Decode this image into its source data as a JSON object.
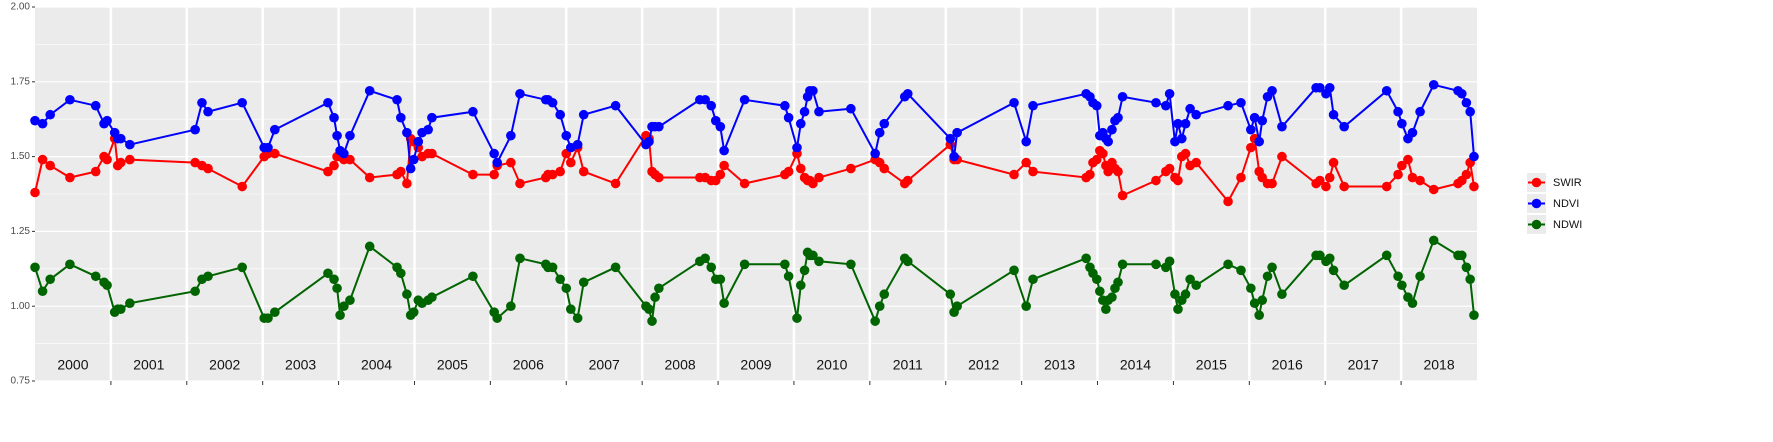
{
  "chart_data": {
    "type": "line",
    "xlim": [
      2000,
      2019
    ],
    "ylim": [
      0.75,
      2.0
    ],
    "yticks": [
      {
        "value": 0.75,
        "label": "0.75"
      },
      {
        "value": 1.0,
        "label": "1.00"
      },
      {
        "value": 1.25,
        "label": "1.25"
      },
      {
        "value": 1.5,
        "label": "1.50"
      },
      {
        "value": 1.75,
        "label": "1.75"
      },
      {
        "value": 2.0,
        "label": "2.00"
      }
    ],
    "year_boundaries": [
      2001,
      2002,
      2003,
      2004,
      2005,
      2006,
      2007,
      2008,
      2009,
      2010,
      2011,
      2012,
      2013,
      2014,
      2015,
      2016,
      2017,
      2018
    ],
    "year_labels": [
      "2000",
      "2001",
      "2002",
      "2003",
      "2004",
      "2005",
      "2006",
      "2007",
      "2008",
      "2009",
      "2010",
      "2011",
      "2012",
      "2013",
      "2014",
      "2015",
      "2016",
      "2017",
      "2018"
    ],
    "grid": true,
    "legend": "right",
    "x": [
      2000.0,
      2000.1,
      2000.2,
      2000.46,
      2000.8,
      2000.91,
      2000.95,
      2001.05,
      2001.09,
      2001.13,
      2001.25,
      2002.11,
      2002.2,
      2002.28,
      2002.73,
      2003.02,
      2003.07,
      2003.16,
      2003.86,
      2003.94,
      2003.98,
      2004.02,
      2004.07,
      2004.15,
      2004.41,
      2004.77,
      2004.82,
      2004.9,
      2004.95,
      2004.99,
      2005.05,
      2005.1,
      2005.18,
      2005.23,
      2005.77,
      2006.05,
      2006.09,
      2006.27,
      2006.39,
      2006.73,
      2006.76,
      2006.82,
      2006.92,
      2007.0,
      2007.06,
      2007.15,
      2007.23,
      2007.65,
      2008.05,
      2008.09,
      2008.13,
      2008.17,
      2008.22,
      2008.76,
      2008.83,
      2008.91,
      2008.97,
      2009.03,
      2009.08,
      2009.35,
      2009.88,
      2009.93,
      2010.04,
      2010.09,
      2010.14,
      2010.18,
      2010.21,
      2010.25,
      2010.33,
      2010.75,
      2011.07,
      2011.13,
      2011.19,
      2011.46,
      2011.5,
      2012.06,
      2012.11,
      2012.15,
      2012.9,
      2013.06,
      2013.15,
      2013.85,
      2013.9,
      2013.94,
      2013.99,
      2014.03,
      2014.07,
      2014.11,
      2014.14,
      2014.19,
      2014.23,
      2014.27,
      2014.33,
      2014.77,
      2014.9,
      2014.95,
      2015.02,
      2015.06,
      2015.11,
      2015.16,
      2015.22,
      2015.3,
      2015.72,
      2015.89,
      2016.02,
      2016.07,
      2016.13,
      2016.17,
      2016.24,
      2016.3,
      2016.43,
      2016.88,
      2016.93,
      2017.01,
      2017.06,
      2017.11,
      2017.25,
      2017.81,
      2017.96,
      2018.01,
      2018.09,
      2018.15,
      2018.25,
      2018.43,
      2018.75,
      2018.8,
      2018.86,
      2018.91,
      2018.96
    ],
    "series": [
      {
        "name": "SWIR",
        "color": "#ff0000",
        "values": [
          1.38,
          1.49,
          1.47,
          1.43,
          1.45,
          1.5,
          1.49,
          1.56,
          1.47,
          1.48,
          1.49,
          1.48,
          1.47,
          1.46,
          1.4,
          1.5,
          1.51,
          1.51,
          1.45,
          1.47,
          1.5,
          1.5,
          1.49,
          1.49,
          1.43,
          1.44,
          1.45,
          1.41,
          1.56,
          1.55,
          1.53,
          1.5,
          1.51,
          1.51,
          1.44,
          1.44,
          1.47,
          1.48,
          1.41,
          1.43,
          1.44,
          1.44,
          1.45,
          1.51,
          1.48,
          1.53,
          1.45,
          1.41,
          1.57,
          1.56,
          1.45,
          1.44,
          1.43,
          1.43,
          1.43,
          1.42,
          1.42,
          1.44,
          1.47,
          1.41,
          1.44,
          1.45,
          1.51,
          1.46,
          1.43,
          1.42,
          1.42,
          1.41,
          1.43,
          1.46,
          1.49,
          1.48,
          1.46,
          1.41,
          1.42,
          1.54,
          1.49,
          1.49,
          1.44,
          1.48,
          1.45,
          1.43,
          1.44,
          1.48,
          1.49,
          1.52,
          1.51,
          1.47,
          1.45,
          1.48,
          1.46,
          1.45,
          1.37,
          1.42,
          1.45,
          1.46,
          1.43,
          1.42,
          1.5,
          1.51,
          1.47,
          1.48,
          1.35,
          1.43,
          1.53,
          1.56,
          1.45,
          1.43,
          1.41,
          1.41,
          1.5,
          1.41,
          1.42,
          1.4,
          1.43,
          1.48,
          1.4,
          1.4,
          1.44,
          1.47,
          1.49,
          1.43,
          1.42,
          1.39,
          1.41,
          1.42,
          1.44,
          1.48,
          1.4
        ]
      },
      {
        "name": "NDVI",
        "color": "#0000ff",
        "values": [
          1.62,
          1.61,
          1.64,
          1.69,
          1.67,
          1.61,
          1.62,
          1.58,
          1.56,
          1.56,
          1.54,
          1.59,
          1.68,
          1.65,
          1.68,
          1.53,
          1.53,
          1.59,
          1.68,
          1.63,
          1.57,
          1.52,
          1.51,
          1.57,
          1.72,
          1.69,
          1.63,
          1.58,
          1.46,
          1.49,
          1.55,
          1.58,
          1.59,
          1.63,
          1.65,
          1.51,
          1.48,
          1.57,
          1.71,
          1.69,
          1.69,
          1.68,
          1.64,
          1.57,
          1.53,
          1.54,
          1.64,
          1.67,
          1.54,
          1.55,
          1.6,
          1.6,
          1.6,
          1.69,
          1.69,
          1.67,
          1.62,
          1.6,
          1.52,
          1.69,
          1.67,
          1.63,
          1.53,
          1.61,
          1.65,
          1.7,
          1.72,
          1.72,
          1.65,
          1.66,
          1.51,
          1.58,
          1.61,
          1.7,
          1.71,
          1.56,
          1.5,
          1.58,
          1.68,
          1.55,
          1.67,
          1.71,
          1.7,
          1.68,
          1.67,
          1.57,
          1.58,
          1.56,
          1.55,
          1.59,
          1.62,
          1.63,
          1.7,
          1.68,
          1.67,
          1.71,
          1.55,
          1.61,
          1.56,
          1.61,
          1.66,
          1.64,
          1.67,
          1.68,
          1.59,
          1.63,
          1.55,
          1.62,
          1.7,
          1.72,
          1.6,
          1.73,
          1.73,
          1.71,
          1.73,
          1.64,
          1.6,
          1.72,
          1.65,
          1.61,
          1.56,
          1.58,
          1.65,
          1.74,
          1.72,
          1.71,
          1.68,
          1.65,
          1.5
        ]
      },
      {
        "name": "NDWI",
        "color": "#006400",
        "values": [
          1.13,
          1.05,
          1.09,
          1.14,
          1.1,
          1.08,
          1.07,
          0.98,
          0.99,
          0.99,
          1.01,
          1.05,
          1.09,
          1.1,
          1.13,
          0.96,
          0.96,
          0.98,
          1.11,
          1.09,
          1.06,
          0.97,
          1.0,
          1.02,
          1.2,
          1.13,
          1.11,
          1.04,
          0.97,
          0.98,
          1.02,
          1.01,
          1.02,
          1.03,
          1.1,
          0.98,
          0.96,
          1.0,
          1.16,
          1.14,
          1.13,
          1.13,
          1.09,
          1.06,
          0.99,
          0.96,
          1.08,
          1.13,
          1.0,
          0.99,
          0.95,
          1.03,
          1.06,
          1.15,
          1.16,
          1.13,
          1.09,
          1.09,
          1.01,
          1.14,
          1.14,
          1.1,
          0.96,
          1.07,
          1.12,
          1.18,
          1.17,
          1.17,
          1.15,
          1.14,
          0.95,
          1.0,
          1.04,
          1.16,
          1.15,
          1.04,
          0.98,
          1.0,
          1.12,
          1.0,
          1.09,
          1.16,
          1.13,
          1.11,
          1.09,
          1.05,
          1.02,
          0.99,
          1.02,
          1.03,
          1.06,
          1.08,
          1.14,
          1.14,
          1.13,
          1.15,
          1.04,
          0.99,
          1.02,
          1.04,
          1.09,
          1.07,
          1.14,
          1.12,
          1.06,
          1.01,
          0.97,
          1.02,
          1.1,
          1.13,
          1.04,
          1.17,
          1.17,
          1.15,
          1.16,
          1.12,
          1.07,
          1.17,
          1.1,
          1.07,
          1.03,
          1.01,
          1.1,
          1.22,
          1.17,
          1.17,
          1.13,
          1.09,
          0.97
        ]
      }
    ]
  }
}
